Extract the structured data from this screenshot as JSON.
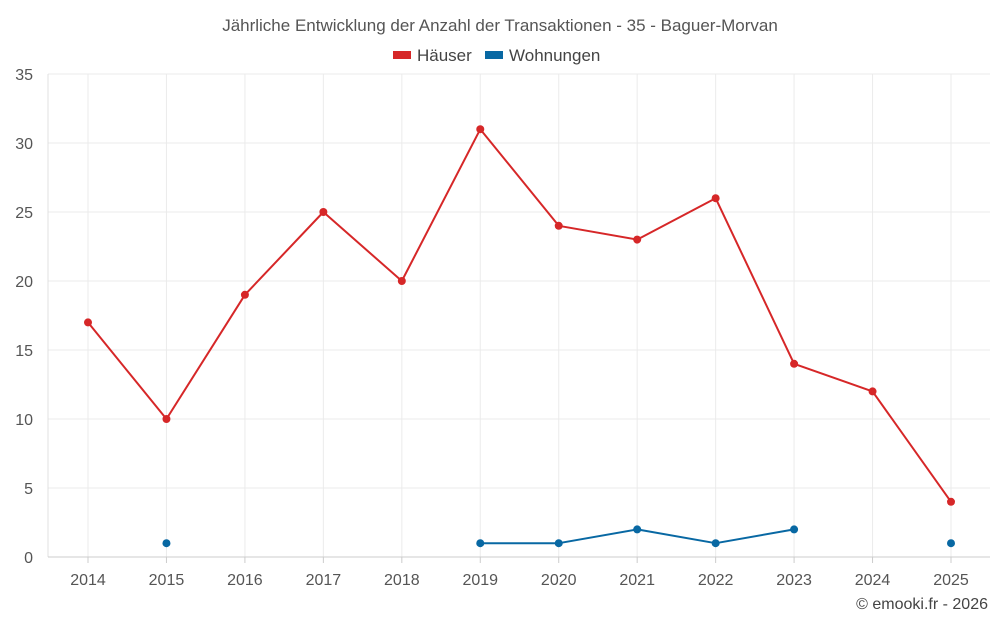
{
  "chart_data": {
    "type": "line",
    "title": "Jährliche Entwicklung der Anzahl der Transaktionen - 35 - Baguer-Morvan",
    "categories": [
      "2014",
      "2015",
      "2016",
      "2017",
      "2018",
      "2019",
      "2020",
      "2021",
      "2022",
      "2023",
      "2024",
      "2025"
    ],
    "ylim": [
      0,
      35
    ],
    "yticks": [
      0,
      5,
      10,
      15,
      20,
      25,
      30,
      35
    ],
    "grid": true,
    "legend_position": "top-center",
    "series": [
      {
        "name": "Häuser",
        "color": "#d62728",
        "values": [
          17,
          10,
          19,
          25,
          20,
          31,
          24,
          23,
          26,
          14,
          12,
          4
        ]
      },
      {
        "name": "Wohnungen",
        "color": "#0868a3",
        "values": [
          null,
          1,
          null,
          null,
          null,
          1,
          1,
          2,
          1,
          2,
          null,
          1
        ]
      }
    ],
    "credit": "© emooki.fr - 2026"
  }
}
